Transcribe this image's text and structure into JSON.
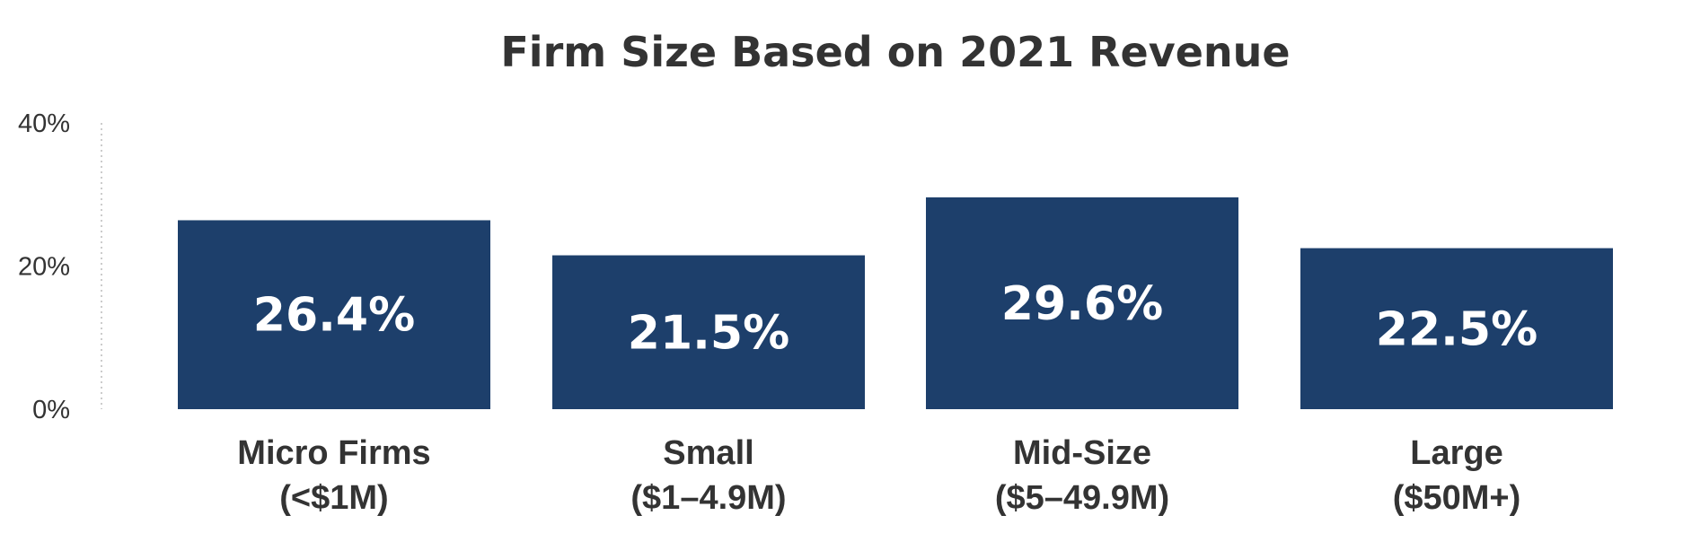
{
  "chart_data": {
    "type": "bar",
    "title": "Firm Size Based on 2021 Revenue",
    "xlabel": "",
    "ylabel": "",
    "ylim": [
      0,
      40
    ],
    "yticks": [
      0,
      20,
      40
    ],
    "ytick_labels": [
      "0%",
      "20%",
      "40%"
    ],
    "categories": [
      [
        "Micro Firms",
        "(<$1M)"
      ],
      [
        "Small",
        "($1–4.9M)"
      ],
      [
        "Mid-Size",
        "($5–49.9M)"
      ],
      [
        "Large",
        "($50M+)"
      ]
    ],
    "values": [
      26.4,
      21.5,
      29.6,
      22.5
    ],
    "data_labels": [
      "26.4%",
      "21.5%",
      "29.6%",
      "22.5%"
    ],
    "grid": false,
    "colors": {
      "bar": "#1d3f6b",
      "bar_label": "#ffffff",
      "text": "#333333",
      "axis_line": "#bbbbbb"
    }
  }
}
